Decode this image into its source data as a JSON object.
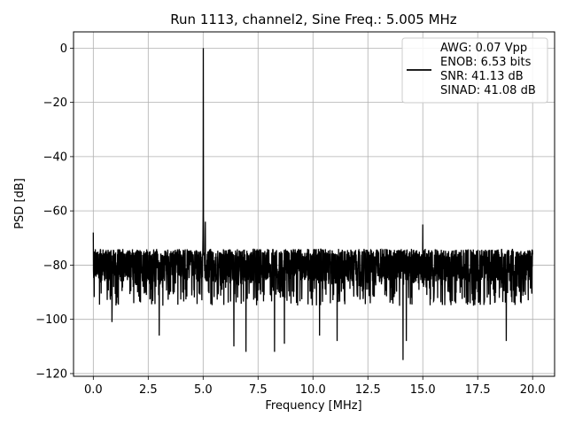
{
  "chart_data": {
    "type": "line",
    "title": "Run 1113, channel2, Sine Freq.: 5.005 MHz",
    "xlabel": "Frequency [MHz]",
    "ylabel": "PSD [dB]",
    "xlim": [
      -0.9,
      21.0
    ],
    "ylim": [
      -121,
      6
    ],
    "x_ticks": [
      0.0,
      2.5,
      5.0,
      7.5,
      10.0,
      12.5,
      15.0,
      17.5,
      20.0
    ],
    "x_tick_labels": [
      "0.0",
      "2.5",
      "5.0",
      "7.5",
      "10.0",
      "12.5",
      "15.0",
      "17.5",
      "20.0"
    ],
    "y_ticks": [
      0,
      -20,
      -40,
      -60,
      -80,
      -100,
      -120
    ],
    "y_tick_labels": [
      "0",
      "−20",
      "−40",
      "−60",
      "−80",
      "−100",
      "−120"
    ],
    "grid": true,
    "legend_position": "top-right",
    "series": [
      {
        "name": "AWG: 0.07 Vpp\nENOB: 6.53 bits\nSNR: 41.13 dB\nSINAD: 41.08 dB",
        "color": "#000000",
        "noise_floor": {
          "x_range": [
            0.0,
            20.0
          ],
          "upper_envelope_db": -71,
          "typical_db": -82,
          "lower_envelope_db": -95
        },
        "peaks": [
          {
            "x": 5.005,
            "y": 0
          },
          {
            "x": 5.1,
            "y": -64
          },
          {
            "x": 15.0,
            "y": -65
          },
          {
            "x": 0.0,
            "y": -68
          }
        ],
        "dips": [
          {
            "x": 0.85,
            "y": -101
          },
          {
            "x": 3.0,
            "y": -106
          },
          {
            "x": 6.4,
            "y": -110
          },
          {
            "x": 6.95,
            "y": -112
          },
          {
            "x": 8.25,
            "y": -112
          },
          {
            "x": 8.7,
            "y": -109
          },
          {
            "x": 10.3,
            "y": -106
          },
          {
            "x": 11.1,
            "y": -108
          },
          {
            "x": 14.1,
            "y": -115
          },
          {
            "x": 14.25,
            "y": -108
          },
          {
            "x": 18.8,
            "y": -108
          }
        ]
      }
    ]
  }
}
